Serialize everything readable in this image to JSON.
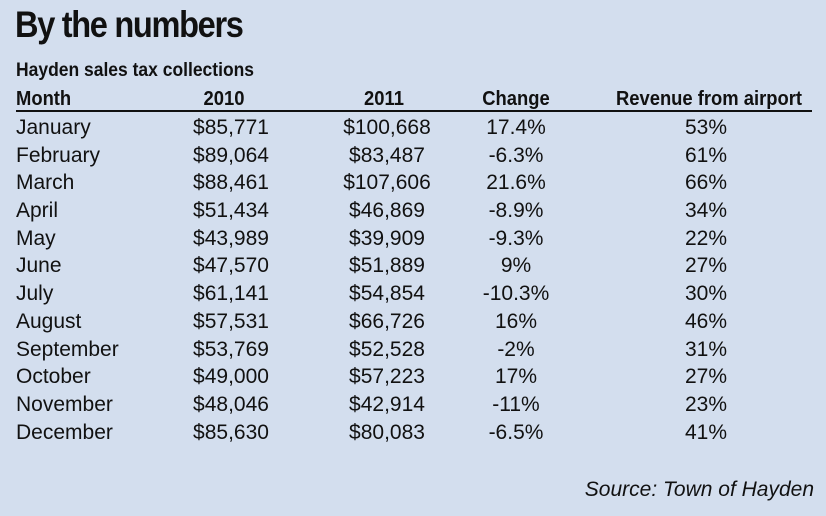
{
  "colors": {
    "background": "#d3deee",
    "text": "#111111",
    "rule": "#111111"
  },
  "title": "By the numbers",
  "subtitle": "Hayden sales tax collections",
  "source": "Source: Town of Hayden",
  "chart_data": {
    "type": "table",
    "title": "By the numbers",
    "subtitle": "Hayden sales tax collections",
    "columns": [
      "Month",
      "2010",
      "2011",
      "Change",
      "Revenue from airport"
    ],
    "rows": [
      {
        "month": "January",
        "v2010": "$85,771",
        "v2011": "$100,668",
        "change": "17.4%",
        "airport": "53%"
      },
      {
        "month": "February",
        "v2010": "$89,064",
        "v2011": "$83,487",
        "change": "-6.3%",
        "airport": "61%"
      },
      {
        "month": "March",
        "v2010": "$88,461",
        "v2011": "$107,606",
        "change": "21.6%",
        "airport": "66%"
      },
      {
        "month": "April",
        "v2010": "$51,434",
        "v2011": "$46,869",
        "change": "-8.9%",
        "airport": "34%"
      },
      {
        "month": "May",
        "v2010": "$43,989",
        "v2011": "$39,909",
        "change": "-9.3%",
        "airport": "22%"
      },
      {
        "month": "June",
        "v2010": "$47,570",
        "v2011": "$51,889",
        "change": "9%",
        "airport": "27%"
      },
      {
        "month": "July",
        "v2010": "$61,141",
        "v2011": "$54,854",
        "change": "-10.3%",
        "airport": "30%"
      },
      {
        "month": "August",
        "v2010": "$57,531",
        "v2011": "$66,726",
        "change": "16%",
        "airport": "46%"
      },
      {
        "month": "September",
        "v2010": "$53,769",
        "v2011": "$52,528",
        "change": "-2%",
        "airport": "31%"
      },
      {
        "month": "October",
        "v2010": "$49,000",
        "v2011": "$57,223",
        "change": "17%",
        "airport": "27%"
      },
      {
        "month": "November",
        "v2010": "$48,046",
        "v2011": "$42,914",
        "change": "-11%",
        "airport": "23%"
      },
      {
        "month": "December",
        "v2010": "$85,630",
        "v2011": "$80,083",
        "change": "-6.5%",
        "airport": "41%"
      }
    ]
  }
}
